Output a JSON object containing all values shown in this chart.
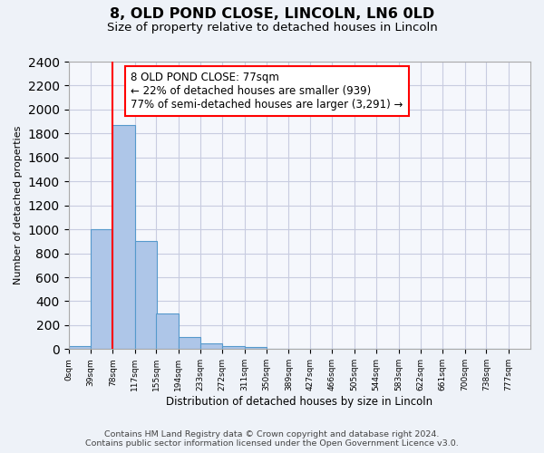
{
  "title": "8, OLD POND CLOSE, LINCOLN, LN6 0LD",
  "subtitle": "Size of property relative to detached houses in Lincoln",
  "xlabel": "Distribution of detached houses by size in Lincoln",
  "ylabel": "Number of detached properties",
  "bin_edges": [
    0,
    39,
    78,
    117,
    155,
    194,
    233,
    272,
    311,
    350,
    389,
    427,
    466,
    505,
    544,
    583,
    622,
    661,
    700,
    738,
    777
  ],
  "bar_heights": [
    25,
    1000,
    1870,
    900,
    300,
    100,
    45,
    25,
    15,
    0,
    0,
    0,
    0,
    0,
    0,
    0,
    0,
    0,
    0,
    0
  ],
  "tick_labels": [
    "0sqm",
    "39sqm",
    "78sqm",
    "117sqm",
    "155sqm",
    "194sqm",
    "233sqm",
    "272sqm",
    "311sqm",
    "350sqm",
    "389sqm",
    "427sqm",
    "466sqm",
    "505sqm",
    "544sqm",
    "583sqm",
    "622sqm",
    "661sqm",
    "700sqm",
    "738sqm",
    "777sqm"
  ],
  "bar_color": "#aec6e8",
  "bar_edge_color": "#5599cc",
  "vline_x": 77,
  "vline_color": "red",
  "annotation_line1": "8 OLD POND CLOSE: 77sqm",
  "annotation_line2": "← 22% of detached houses are smaller (939)",
  "annotation_line3": "77% of semi-detached houses are larger (3,291) →",
  "ylim": [
    0,
    2400
  ],
  "yticks": [
    0,
    200,
    400,
    600,
    800,
    1000,
    1200,
    1400,
    1600,
    1800,
    2000,
    2200,
    2400
  ],
  "footer_line1": "Contains HM Land Registry data © Crown copyright and database right 2024.",
  "footer_line2": "Contains public sector information licensed under the Open Government Licence v3.0.",
  "background_color": "#eef2f8",
  "plot_background_color": "#f5f7fc",
  "grid_color": "#c8cce0",
  "title_fontsize": 11.5,
  "subtitle_fontsize": 9.5,
  "annotation_fontsize": 8.5,
  "footer_fontsize": 6.8
}
